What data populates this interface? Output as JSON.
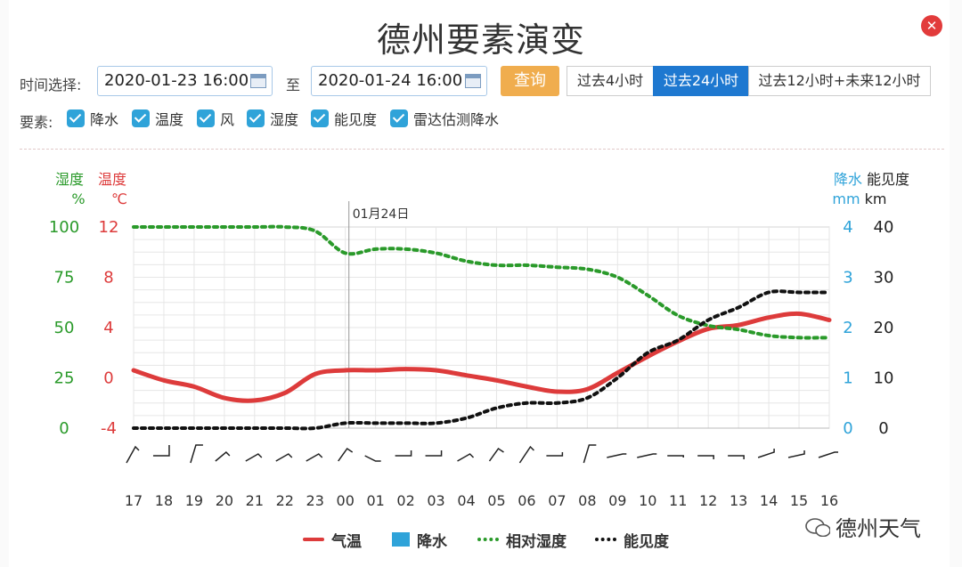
{
  "title": "德州要素演变",
  "header": {
    "time_label": "时间选择:",
    "start_date": "2020-01-23 16:00",
    "to_label": "至",
    "end_date": "2020-01-24 16:00",
    "query_label": "查询",
    "tabs": [
      {
        "label": "过去4小时",
        "active": false
      },
      {
        "label": "过去24小时",
        "active": true
      },
      {
        "label": "过去12小时+未来12小时",
        "active": false
      }
    ]
  },
  "elements": {
    "label": "要素:",
    "items": [
      "降水",
      "温度",
      "风",
      "湿度",
      "能见度",
      "雷达估测降水"
    ]
  },
  "colors": {
    "temperature": "#dd3b3b",
    "humidity": "#2a9a2a",
    "precip": "#2fa3d9",
    "visibility": "#111111",
    "active_tab": "#1e78d0",
    "query": "#f0ad4e"
  },
  "chart_data": {
    "type": "line",
    "date_marker": "01月24日",
    "categories": [
      "17",
      "18",
      "19",
      "20",
      "21",
      "22",
      "23",
      "00",
      "01",
      "02",
      "03",
      "04",
      "05",
      "06",
      "07",
      "08",
      "09",
      "10",
      "11",
      "12",
      "13",
      "14",
      "15",
      "16"
    ],
    "axes": {
      "humidity": {
        "title": "湿度",
        "unit": "%",
        "ticks": [
          "0",
          "25",
          "50",
          "75",
          "100"
        ],
        "range": [
          0,
          100
        ]
      },
      "temperature": {
        "title": "温度",
        "unit": "℃",
        "ticks": [
          "-4",
          "0",
          "4",
          "8",
          "12"
        ],
        "range": [
          -4,
          12
        ]
      },
      "precip": {
        "title": "降水",
        "unit": "mm",
        "ticks": [
          "0",
          "1",
          "2",
          "3",
          "4"
        ],
        "range": [
          0,
          4
        ]
      },
      "visibility": {
        "title": "能见度",
        "unit": "km",
        "ticks": [
          "0",
          "10",
          "20",
          "30",
          "40"
        ],
        "range": [
          0,
          40
        ]
      }
    },
    "series": [
      {
        "name": "气温",
        "axis": "temperature",
        "values": [
          0.6,
          -0.2,
          -0.7,
          -1.6,
          -1.8,
          -1.2,
          0.3,
          0.6,
          0.6,
          0.7,
          0.6,
          0.2,
          -0.2,
          -0.7,
          -1.1,
          -0.9,
          0.4,
          1.7,
          2.9,
          3.9,
          4.2,
          4.8,
          5.1,
          4.6
        ]
      },
      {
        "name": "降水",
        "axis": "precip",
        "values": [
          0,
          0,
          0,
          0,
          0,
          0,
          0,
          0,
          0,
          0,
          0,
          0,
          0,
          0,
          0,
          0,
          0,
          0,
          0,
          0,
          0,
          0,
          0,
          0
        ]
      },
      {
        "name": "相对湿度",
        "axis": "humidity",
        "values": [
          100,
          100,
          100,
          100,
          100,
          100,
          98,
          87,
          89,
          89,
          87,
          83,
          81,
          81,
          80,
          79,
          75,
          66,
          56,
          51,
          49,
          46,
          45,
          45
        ]
      },
      {
        "name": "能见度",
        "axis": "visibility",
        "values": [
          0,
          0,
          0,
          0,
          0,
          0,
          0,
          1,
          1,
          1,
          1,
          2,
          4,
          5,
          5,
          6,
          10,
          15,
          17.5,
          21.5,
          24,
          27,
          27,
          27
        ]
      }
    ],
    "grid": true
  },
  "legend": [
    "气温",
    "降水",
    "相对湿度",
    "能见度"
  ],
  "watermark": "德州天气"
}
